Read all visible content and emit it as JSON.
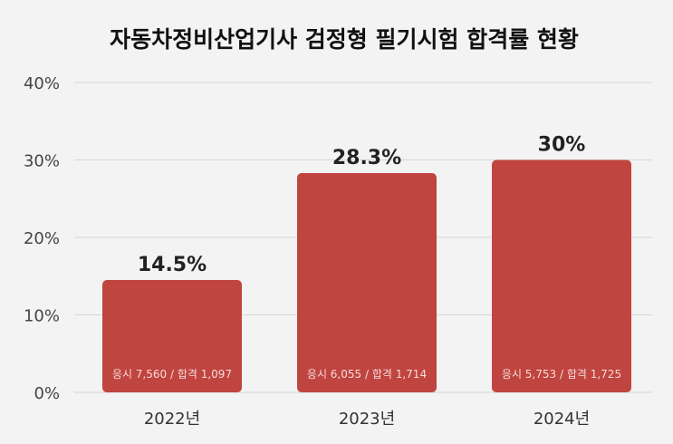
{
  "chart_data": {
    "type": "bar",
    "title": "자동차정비산업기사 검정형 필기시험 합격률 현황",
    "categories": [
      "2022년",
      "2023년",
      "2024년"
    ],
    "values": [
      14.5,
      28.3,
      30
    ],
    "value_labels": [
      "14.5%",
      "28.3%",
      "30%"
    ],
    "bar_notes": [
      "응시 7,560 / 합격 1,097",
      "응시 6,055 / 합격 1,714",
      "응시 5,753 / 합격 1,725"
    ],
    "ylim": [
      0,
      40
    ],
    "yticks": [
      "0%",
      "10%",
      "20%",
      "30%",
      "40%"
    ],
    "ytick_values": [
      0,
      10,
      20,
      30,
      40
    ],
    "xlabel": "",
    "ylabel": "",
    "grid": true,
    "bar_color": "#c0443f",
    "background": "#f3f3f3"
  }
}
